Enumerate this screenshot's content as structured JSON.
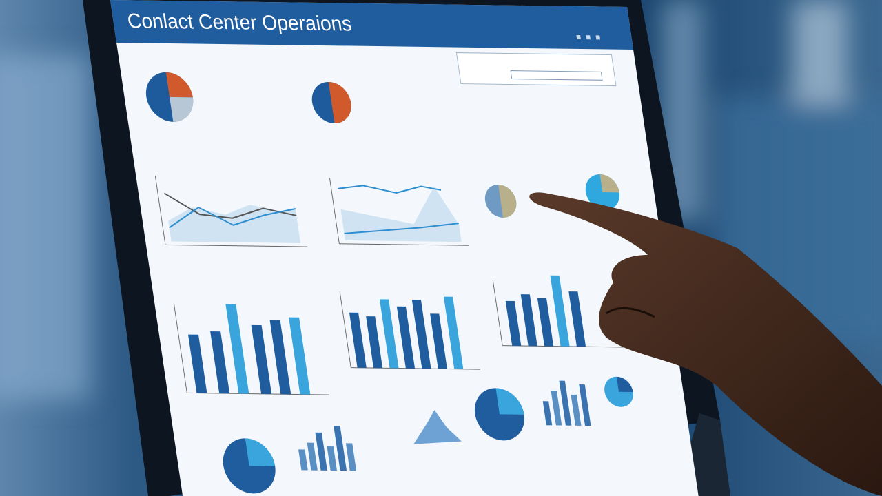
{
  "screen": {
    "title": "Conlact Center Operaions"
  }
}
